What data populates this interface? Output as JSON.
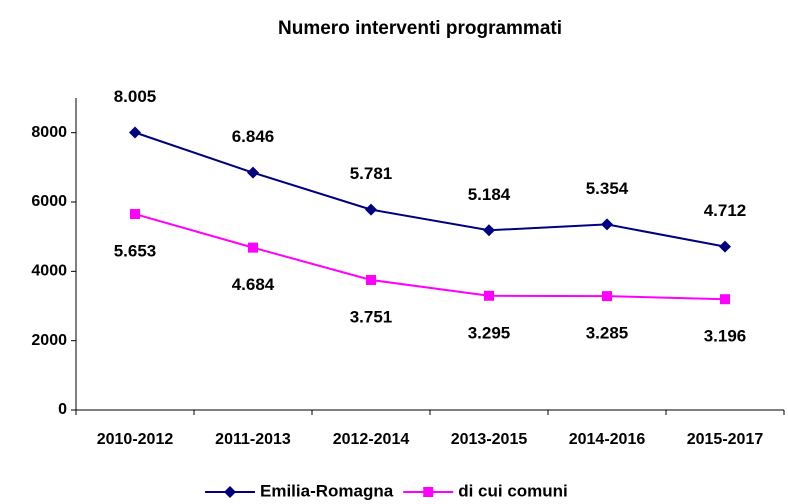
{
  "chart_data": {
    "type": "line",
    "title": "Numero interventi programmati",
    "categories": [
      "2010-2012",
      "2011-2013",
      "2012-2014",
      "2013-2015",
      "2014-2016",
      "2015-2017"
    ],
    "series": [
      {
        "name": "Emilia-Romagna",
        "color": "#000080",
        "marker": "diamond",
        "values": [
          8005,
          6846,
          5781,
          5184,
          5354,
          4712
        ],
        "value_labels": [
          "8.005",
          "6.846",
          "5.781",
          "5.184",
          "5.354",
          "4.712"
        ]
      },
      {
        "name": "di cui comuni",
        "color": "#ff00ff",
        "marker": "square",
        "values": [
          5653,
          4684,
          3751,
          3295,
          3285,
          3196
        ],
        "value_labels": [
          "5.653",
          "4.684",
          "3.751",
          "3.295",
          "3.285",
          "3.196"
        ]
      }
    ],
    "ylim": [
      0,
      9000
    ],
    "yticks": [
      0,
      2000,
      4000,
      6000,
      8000
    ],
    "grid": false,
    "legend": "bottom"
  }
}
